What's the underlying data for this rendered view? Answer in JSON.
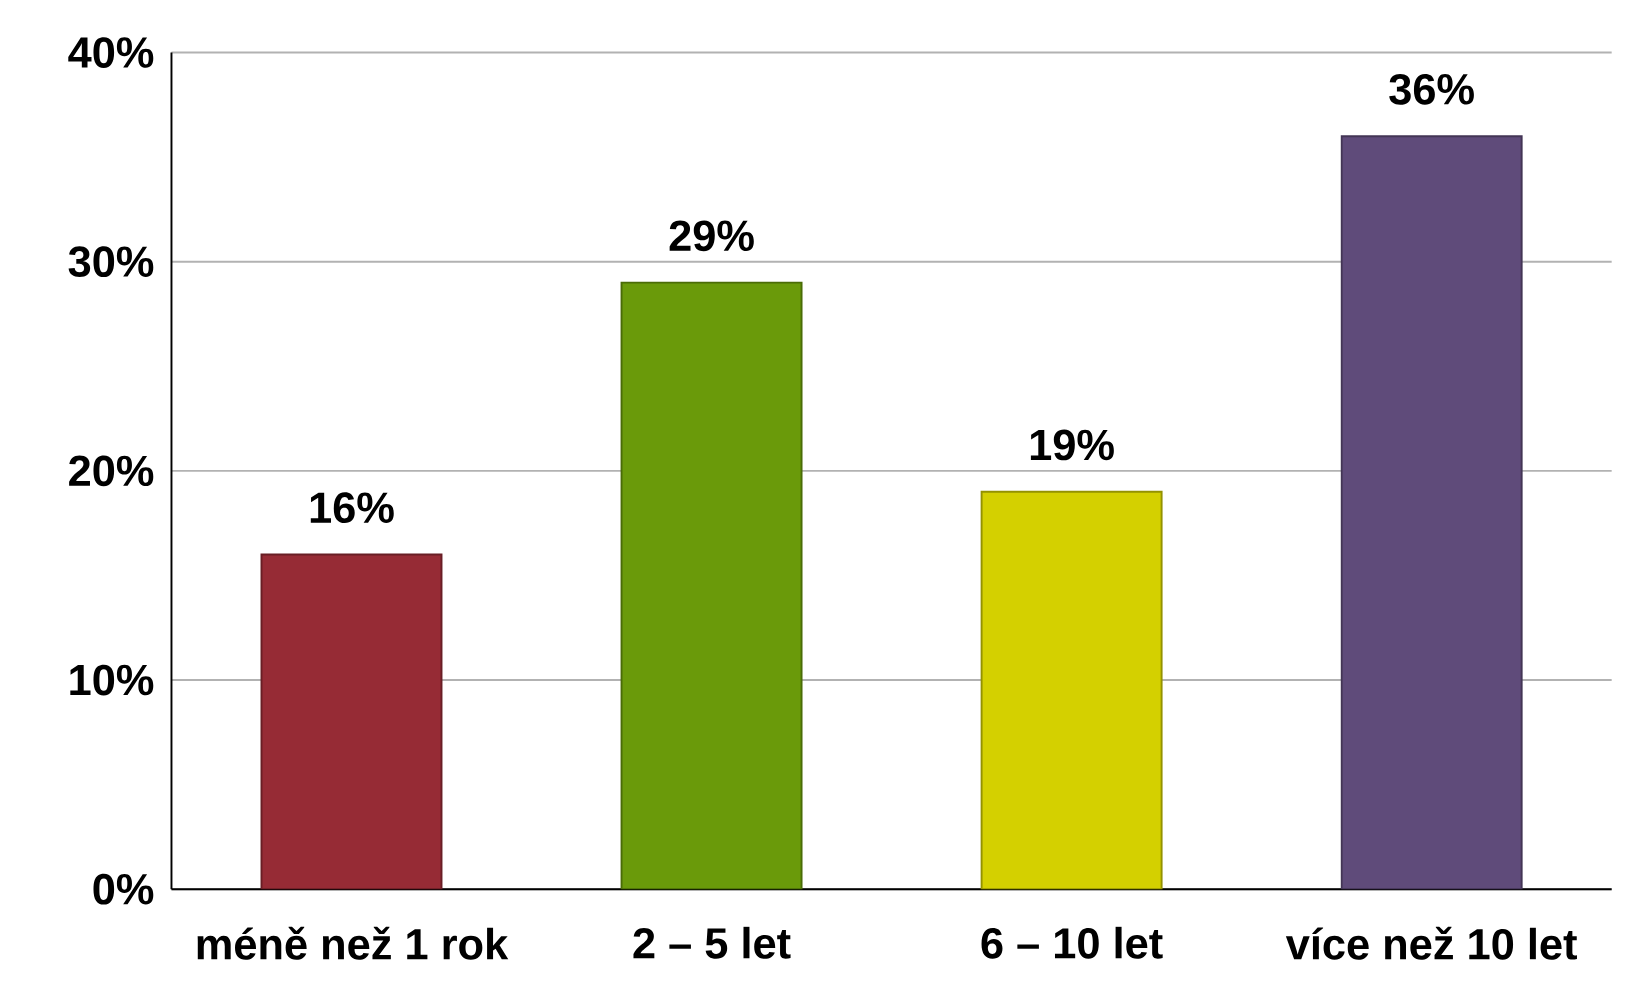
{
  "chart_data": {
    "type": "bar",
    "categories": [
      "méně než 1 rok",
      "2 – 5 let",
      "6 – 10 let",
      "více než 10 let"
    ],
    "values": [
      16,
      29,
      19,
      36
    ],
    "colors": [
      "#962b35",
      "#6a9a0a",
      "#d4d000",
      "#5f4b7a"
    ],
    "value_labels": [
      "16%",
      "29%",
      "19%",
      "36%"
    ],
    "ylim": [
      0,
      40
    ],
    "yticks": [
      {
        "value": 0,
        "label": "0%"
      },
      {
        "value": 10,
        "label": "10%"
      },
      {
        "value": 20,
        "label": "20%"
      },
      {
        "value": 30,
        "label": "30%"
      },
      {
        "value": 40,
        "label": "40%"
      }
    ],
    "grid": "y"
  }
}
